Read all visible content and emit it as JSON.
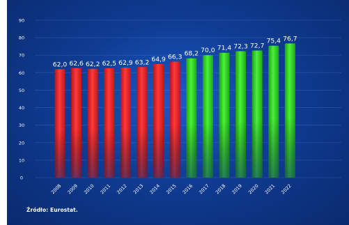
{
  "chart_data": {
    "type": "bar",
    "categories": [
      "2008",
      "2009",
      "2010",
      "2011",
      "2012",
      "2013",
      "2014",
      "2015",
      "2016",
      "2017",
      "2018",
      "2019",
      "2020",
      "2021",
      "2022"
    ],
    "values": [
      62.0,
      62.6,
      62.2,
      62.5,
      62.9,
      63.2,
      64.9,
      66.3,
      68.2,
      70.0,
      71.4,
      72.3,
      72.7,
      75.4,
      76.7
    ],
    "value_labels": [
      "62,0",
      "62,6",
      "62,2",
      "62,5",
      "62,9",
      "63,2",
      "64,9",
      "66,3",
      "68,2",
      "70,0",
      "71,4",
      "72,3",
      "72,7",
      "75,4",
      "76,7"
    ],
    "y_ticks": [
      "0",
      "10",
      "20",
      "30",
      "40",
      "50",
      "60",
      "70",
      "80",
      "90"
    ],
    "ylim": [
      0,
      90
    ],
    "grid": true,
    "legend": "none",
    "colors": {
      "early": "#e8262b",
      "late": "#2ed31f",
      "background": "#0f3c93"
    },
    "color_by_category": [
      "early",
      "early",
      "early",
      "early",
      "early",
      "early",
      "early",
      "early",
      "late",
      "late",
      "late",
      "late",
      "late",
      "late",
      "late"
    ],
    "title": "",
    "xlabel": "",
    "ylabel": ""
  },
  "source_note": "Źródło: Eurostat."
}
